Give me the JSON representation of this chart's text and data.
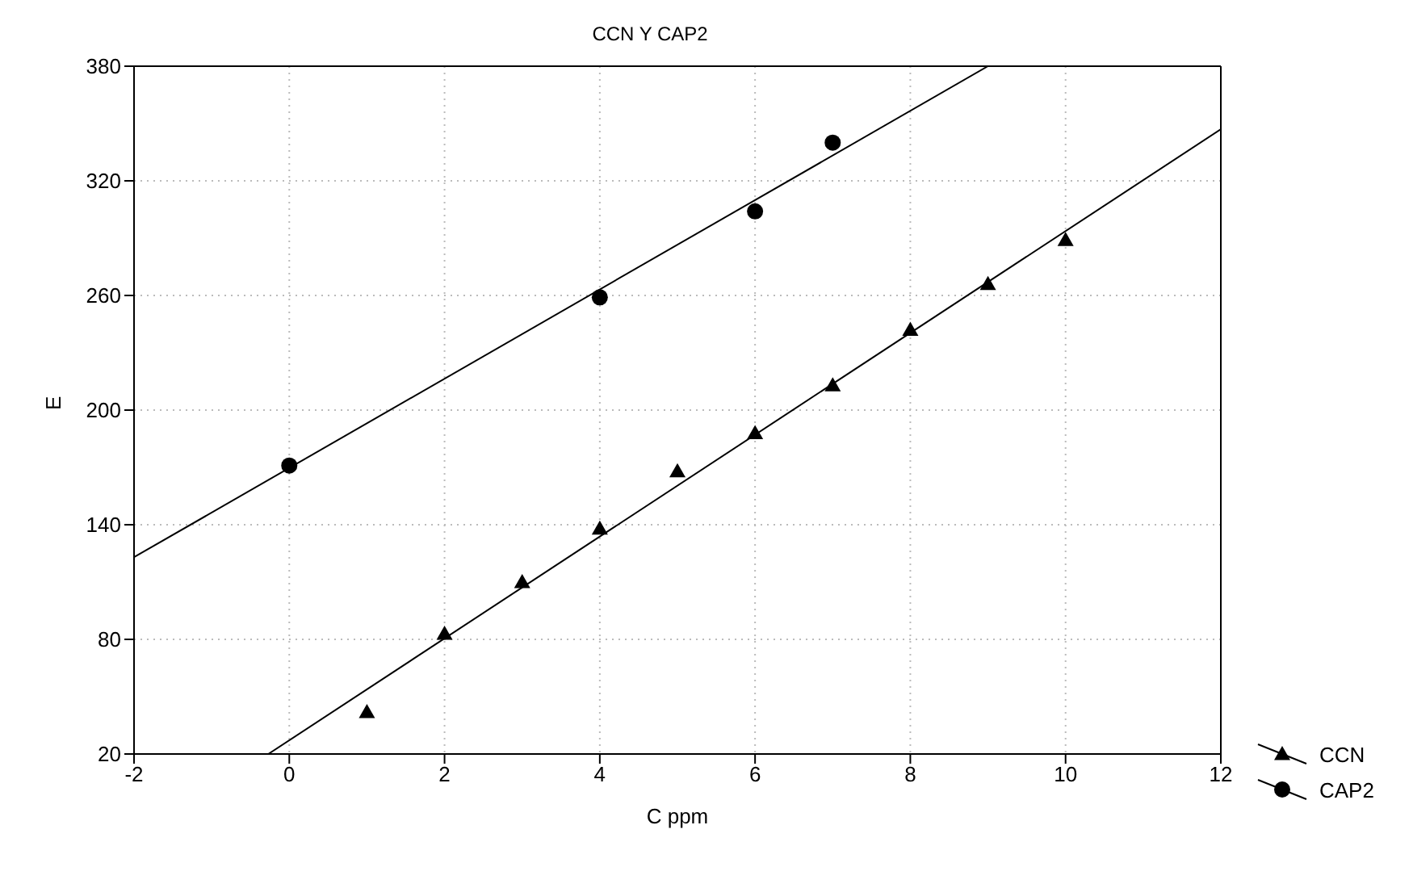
{
  "chart_data": {
    "type": "scatter",
    "title": "CCN Y CAP2",
    "xlabel": "C ppm",
    "ylabel": "E",
    "xlim": [
      -2,
      12
    ],
    "xticks": [
      -2,
      0,
      2,
      4,
      6,
      8,
      10,
      12
    ],
    "ylim": [
      20,
      380
    ],
    "yticks": [
      20,
      80,
      140,
      200,
      260,
      320,
      380
    ],
    "grid": true,
    "legend": "bottom right",
    "series": [
      {
        "name": "CCN",
        "marker": "triangle",
        "color": "#000000",
        "x": [
          1,
          2,
          3,
          4,
          5,
          6,
          7,
          8,
          9,
          10
        ],
        "values": [
          42,
          83,
          110,
          138,
          168,
          188,
          213,
          242,
          266,
          289
        ]
      },
      {
        "name": "CAP2",
        "marker": "circle",
        "color": "#000000",
        "x": [
          0,
          4,
          6,
          7
        ],
        "values": [
          171,
          259,
          304,
          340
        ]
      },
      {
        "type": "line",
        "marker": "none",
        "color": "#000000",
        "x": [
          -0.27,
          12
        ],
        "values": [
          20,
          347
        ]
      },
      {
        "type": "line",
        "marker": "none",
        "color": "#000000",
        "x": [
          -2,
          9
        ],
        "values": [
          123,
          380
        ]
      }
    ]
  }
}
